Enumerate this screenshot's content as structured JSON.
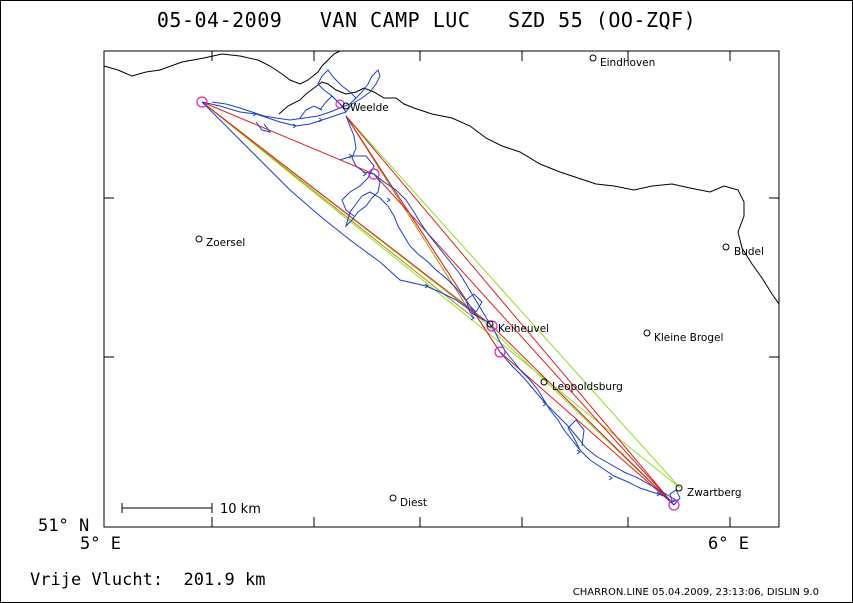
{
  "title": "05-04-2009   VAN CAMP LUC   SZD 55 (OO-ZQF)",
  "axes": {
    "lat_label": "51° N",
    "lon_left_label": "5° E",
    "lon_right_label": "6° E"
  },
  "cities": [
    {
      "name": "Eindhoven"
    },
    {
      "name": "Weelde"
    },
    {
      "name": "Zoersel"
    },
    {
      "name": "Budel"
    },
    {
      "name": "Keiheuvel"
    },
    {
      "name": "Kleine Brogel"
    },
    {
      "name": "Leopoldsburg"
    },
    {
      "name": "Zwartberg"
    },
    {
      "name": "Diest"
    }
  ],
  "scale_bar": {
    "label": "10 km"
  },
  "distance": {
    "label": "Vrije Vlucht:",
    "value": "201.9 km"
  },
  "footer": "CHARRON.LINE 05.04.2009, 23:13:06, DISLIN 9.0",
  "colors": {
    "track": "#1a3fd0",
    "task_red": "#e02020",
    "task_green": "#90e020",
    "task_olive": "#b09010",
    "turnpoint": "#e020c0",
    "border": "#000000"
  }
}
